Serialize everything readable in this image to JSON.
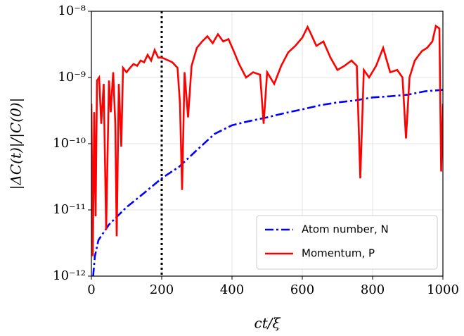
{
  "chart_data": {
    "type": "line",
    "xlabel": "ct/ξ",
    "ylabel": "|ΔC(t)|/|C(0)|",
    "xlim": [
      0,
      1000
    ],
    "xticks": [
      0,
      200,
      400,
      600,
      800,
      1000
    ],
    "ylim": [
      1e-12,
      1e-08
    ],
    "yscale": "log",
    "yticks": [
      {
        "value": 1e-12,
        "label": "10⁻¹²"
      },
      {
        "value": 1e-11,
        "label": "10⁻¹¹"
      },
      {
        "value": 1e-10,
        "label": "10⁻¹⁰"
      },
      {
        "value": 1e-09,
        "label": "10⁻⁹"
      },
      {
        "value": 1e-08,
        "label": "10⁻⁸"
      }
    ],
    "grid": true,
    "legend": "lower right",
    "vline": 200,
    "series": [
      {
        "name": "Atom number, N",
        "color": "#0000ff",
        "dash": "dashdot",
        "x": [
          5,
          10,
          20,
          50,
          100,
          150,
          200,
          250,
          300,
          350,
          400,
          450,
          500,
          550,
          600,
          650,
          700,
          750,
          800,
          850,
          900,
          950,
          1000
        ],
        "values": [
          1e-12,
          2e-12,
          3.5e-12,
          6e-12,
          1.1e-11,
          1.8e-11,
          3e-11,
          4.5e-11,
          8e-11,
          1.4e-10,
          1.9e-10,
          2.2e-10,
          2.5e-10,
          2.9e-10,
          3.3e-10,
          3.8e-10,
          4.2e-10,
          4.5e-10,
          5e-10,
          5.2e-10,
          5.5e-10,
          6.2e-10,
          6.5e-10
        ]
      },
      {
        "name": "Momentum, P",
        "color": "#ff0000",
        "dash": "solid",
        "x": [
          0,
          4,
          8,
          12,
          16,
          22,
          28,
          35,
          42,
          50,
          55,
          62,
          68,
          72,
          78,
          85,
          90,
          100,
          110,
          120,
          130,
          140,
          150,
          160,
          170,
          180,
          190,
          200,
          210,
          220,
          230,
          245,
          252,
          258,
          265,
          275,
          285,
          300,
          315,
          330,
          345,
          360,
          375,
          390,
          405,
          420,
          440,
          460,
          480,
          490,
          500,
          520,
          540,
          560,
          580,
          600,
          615,
          625,
          640,
          660,
          680,
          700,
          720,
          740,
          755,
          765,
          775,
          790,
          810,
          830,
          850,
          870,
          885,
          895,
          905,
          920,
          940,
          955,
          970,
          980,
          990,
          995,
          1000
        ],
        "values": [
          4e-10,
          2e-12,
          3e-10,
          8e-12,
          9e-10,
          1e-09,
          2e-10,
          8e-10,
          5e-12,
          9e-10,
          3e-10,
          1.2e-09,
          2e-10,
          4e-12,
          8e-10,
          9e-11,
          1.4e-09,
          1.2e-09,
          1.4e-09,
          1.6e-09,
          1.5e-09,
          1.8e-09,
          1.7e-09,
          2.2e-09,
          1.8e-09,
          2.6e-09,
          2e-09,
          2e-09,
          1.9e-09,
          1.8e-09,
          1.7e-09,
          1.4e-09,
          4e-10,
          2e-11,
          1.2e-09,
          2.5e-10,
          1.5e-09,
          2.8e-09,
          3.5e-09,
          4.2e-09,
          3.3e-09,
          4.5e-09,
          3.5e-09,
          3.8e-09,
          2.5e-09,
          1.6e-09,
          1e-09,
          1.2e-09,
          1.1e-09,
          2e-10,
          1.2e-09,
          8e-10,
          1.5e-09,
          2.4e-09,
          3e-09,
          4e-09,
          5.8e-09,
          4.5e-09,
          3e-09,
          3.5e-09,
          2e-09,
          1.3e-09,
          1.5e-09,
          1.8e-09,
          1.5e-09,
          3e-11,
          1.3e-09,
          1e-09,
          1.5e-09,
          2.8e-09,
          1.2e-09,
          1.3e-09,
          1e-09,
          1.2e-10,
          1e-09,
          1.8e-09,
          2.5e-09,
          2.8e-09,
          3.5e-09,
          6e-09,
          5.5e-09,
          3.8e-11,
          4e-10
        ]
      }
    ]
  }
}
